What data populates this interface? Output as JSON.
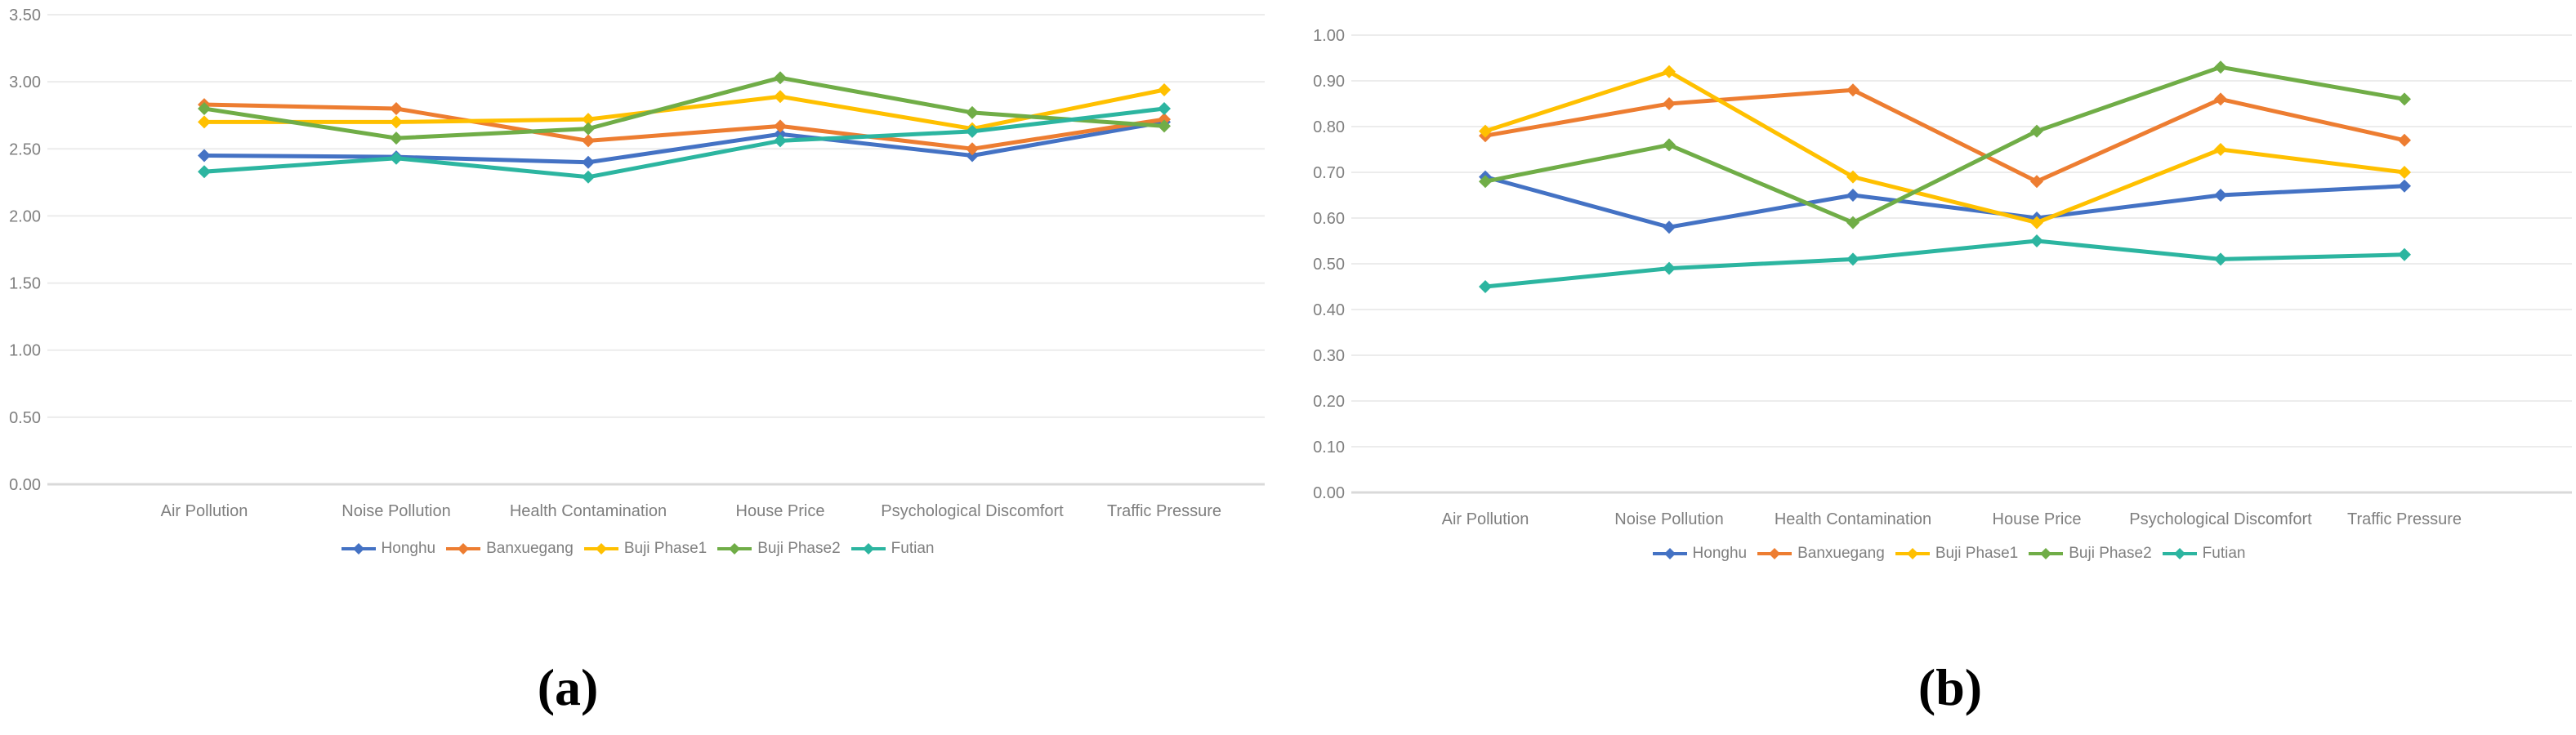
{
  "figure": {
    "captions": {
      "a": "(a)",
      "b": "(b)"
    }
  },
  "style": {
    "background": "#ffffff",
    "axis_text_color": "#7f7f7f",
    "grid_color": "#ececec",
    "baseline_color": "#d9d9d9",
    "series_colors": {
      "Honghu": "#4472C4",
      "Banxuegang": "#ED7D31",
      "Buji Phase1": "#FFC000",
      "Buji Phase2": "#70AD47",
      "Futian": "#2CB5A0"
    }
  },
  "chart_data": [
    {
      "id": "a",
      "type": "line",
      "title": "",
      "xlabel": "",
      "ylabel": "",
      "grid": true,
      "legend_position": "bottom",
      "marker": "diamond",
      "ylim": [
        0,
        3.5
      ],
      "ytick_step": 0.5,
      "ytick_labels": [
        "3.50",
        "3.00",
        "2.50",
        "2.00",
        "1.50",
        "1.00",
        "0.50",
        "0.00"
      ],
      "categories": [
        "Air Pollution",
        "Noise Pollution",
        "Health Contamination",
        "House Price",
        "Psychological Discomfort",
        "Traffic Pressure"
      ],
      "series": [
        {
          "name": "Honghu",
          "color": "#4472C4",
          "values": [
            2.45,
            2.44,
            2.4,
            2.61,
            2.45,
            2.7
          ]
        },
        {
          "name": "Banxuegang",
          "color": "#ED7D31",
          "values": [
            2.83,
            2.8,
            2.56,
            2.67,
            2.5,
            2.72
          ]
        },
        {
          "name": "Buji Phase1",
          "color": "#FFC000",
          "values": [
            2.7,
            2.7,
            2.72,
            2.89,
            2.65,
            2.94
          ]
        },
        {
          "name": "Buji Phase2",
          "color": "#70AD47",
          "values": [
            2.8,
            2.58,
            2.65,
            3.03,
            2.77,
            2.67
          ]
        },
        {
          "name": "Futian",
          "color": "#2CB5A0",
          "values": [
            2.33,
            2.43,
            2.29,
            2.56,
            2.63,
            2.8
          ]
        }
      ]
    },
    {
      "id": "b",
      "type": "line",
      "title": "",
      "xlabel": "",
      "ylabel": "",
      "grid": true,
      "legend_position": "bottom",
      "marker": "diamond",
      "ylim": [
        0,
        1.0
      ],
      "ytick_step": 0.1,
      "ytick_labels": [
        "1.00",
        "0.90",
        "0.80",
        "0.70",
        "0.60",
        "0.50",
        "0.40",
        "0.30",
        "0.20",
        "0.10",
        "0.00"
      ],
      "categories": [
        "Air Pollution",
        "Noise Pollution",
        "Health Contamination",
        "House Price",
        "Psychological Discomfort",
        "Traffic Pressure"
      ],
      "series": [
        {
          "name": "Honghu",
          "color": "#4472C4",
          "values": [
            0.69,
            0.58,
            0.65,
            0.6,
            0.65,
            0.67
          ]
        },
        {
          "name": "Banxuegang",
          "color": "#ED7D31",
          "values": [
            0.78,
            0.85,
            0.88,
            0.68,
            0.86,
            0.77
          ]
        },
        {
          "name": "Buji Phase1",
          "color": "#FFC000",
          "values": [
            0.79,
            0.92,
            0.69,
            0.59,
            0.75,
            0.7
          ]
        },
        {
          "name": "Buji Phase2",
          "color": "#70AD47",
          "values": [
            0.68,
            0.76,
            0.59,
            0.79,
            0.93,
            0.86
          ]
        },
        {
          "name": "Futian",
          "color": "#2CB5A0",
          "values": [
            0.45,
            0.49,
            0.51,
            0.55,
            0.51,
            0.52
          ]
        }
      ]
    }
  ]
}
